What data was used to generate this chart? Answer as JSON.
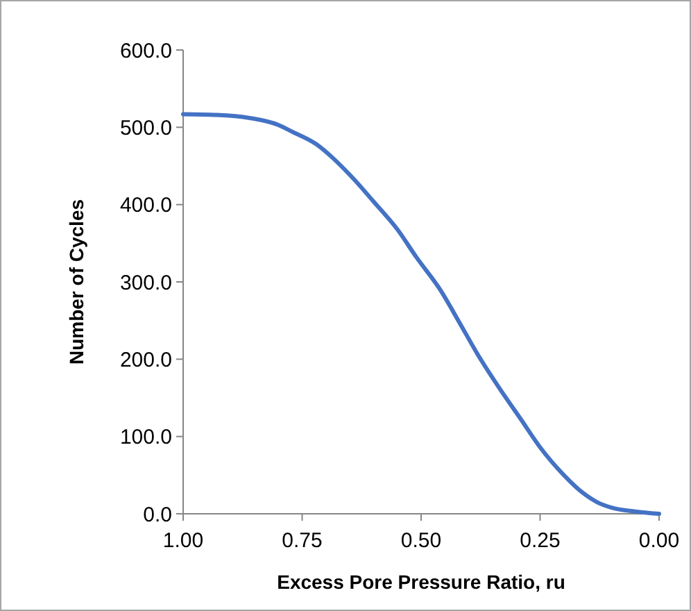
{
  "chart_data": {
    "type": "line",
    "xlabel": "Excess Pore Pressure Ratio, ru",
    "ylabel": "Number of Cycles",
    "xlim": [
      1,
      0
    ],
    "ylim": [
      0,
      600
    ],
    "xticks": [
      {
        "value": 1,
        "label": "1.00"
      },
      {
        "value": 0.75,
        "label": "0.75"
      },
      {
        "value": 0.5,
        "label": "0.50"
      },
      {
        "value": 0.25,
        "label": "0.25"
      },
      {
        "value": 0,
        "label": "0.00"
      }
    ],
    "yticks": [
      {
        "value": 0,
        "label": "0.0"
      },
      {
        "value": 100,
        "label": "100.0"
      },
      {
        "value": 200,
        "label": "200.0"
      },
      {
        "value": 300,
        "label": "300.0"
      },
      {
        "value": 400,
        "label": "400.0"
      },
      {
        "value": 500,
        "label": "500.0"
      },
      {
        "value": 600,
        "label": "600.0"
      }
    ],
    "grid": false,
    "line_style": "solid",
    "series": [
      {
        "color": "#4472c4",
        "x": [
          1,
          0.93,
          0.86,
          0.8,
          0.77,
          0.72,
          0.685,
          0.64,
          0.6,
          0.55,
          0.51,
          0.46,
          0.42,
          0.38,
          0.335,
          0.29,
          0.25,
          0.2,
          0.16,
          0.13,
          0.1,
          0.05,
          0
        ],
        "values": [
          517,
          516,
          512,
          503,
          494,
          478,
          460,
          432,
          404,
          368,
          332,
          290,
          248,
          205,
          162,
          122,
          86,
          50,
          27,
          15,
          8,
          3,
          0
        ]
      }
    ]
  }
}
